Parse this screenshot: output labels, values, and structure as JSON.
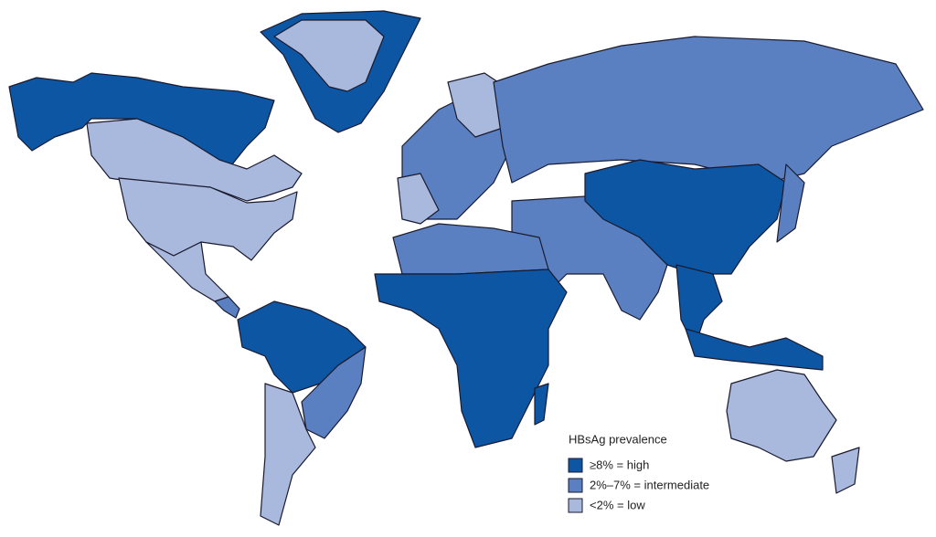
{
  "legend": {
    "title": "HBsAg prevalence",
    "items": [
      {
        "label": "≥8% = high",
        "color": "#0d56a4"
      },
      {
        "label": "2%–7% = intermediate",
        "color": "#5a80c2"
      },
      {
        "label": "<2% = low",
        "color": "#a9b9dd"
      }
    ]
  }
}
